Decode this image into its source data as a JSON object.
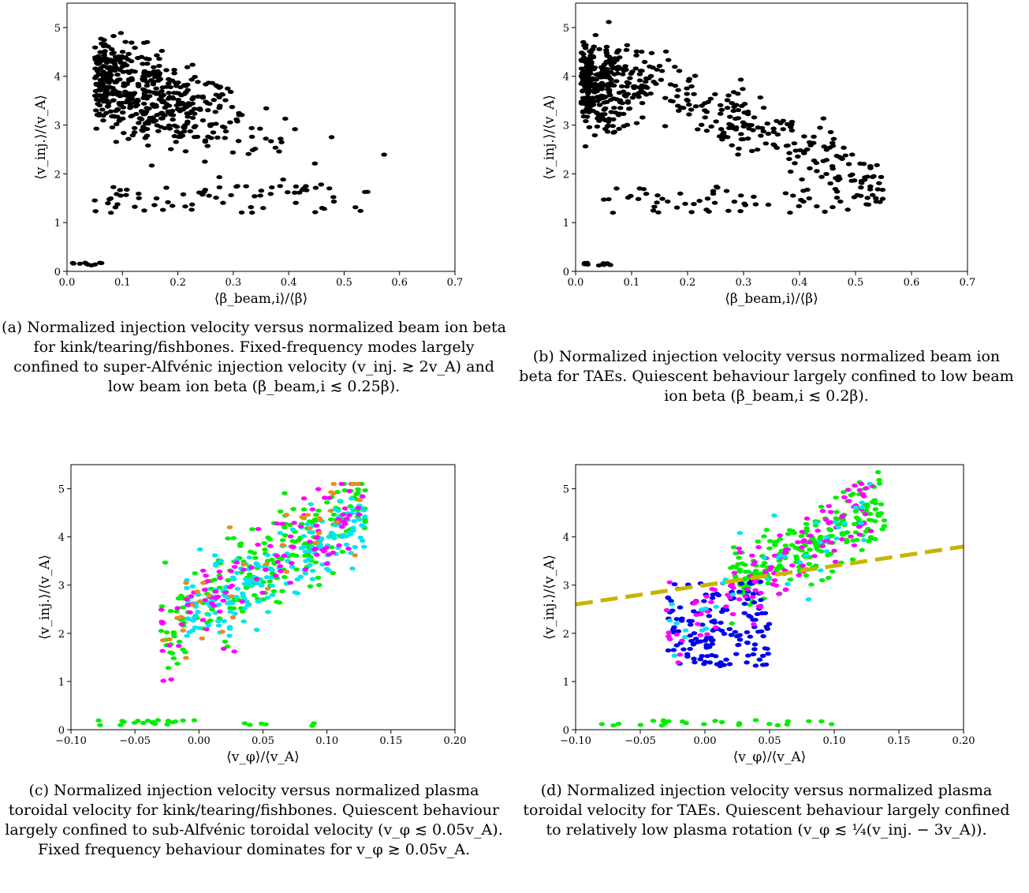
{
  "colors": {
    "green": "#00ee00",
    "cyan": "#00e5ee",
    "magenta": "#ff00ff",
    "orange": "#ee8a1c",
    "blue": "#0000ee",
    "fit_line": "#c8b400"
  },
  "chart_data": [
    {
      "type": "scatter",
      "xlabel": "⟨β_beam,i⟩/⟨β⟩",
      "ylabel": "⟨v_inj.⟩/⟨v_A⟩",
      "xlim": [
        0,
        0.7
      ],
      "ylim": [
        0,
        5.5
      ],
      "xticks": [
        "0.0",
        "0.1",
        "0.2",
        "0.3",
        "0.4",
        "0.5",
        "0.6",
        "0.7"
      ],
      "yticks": [
        "0",
        "1",
        "2",
        "3",
        "4",
        "5"
      ],
      "series_colors": [
        "green",
        "cyan",
        "magenta",
        "orange"
      ],
      "caption": "(a) Normalized injection velocity versus normalized beam ion beta for kink/tearing/fishbones. Fixed-frequency modes largely confined to super-Alfvénic injection velocity (v_inj. ≳ 2v_A) and low beam ion beta (β_beam,i ≲ 0.25β)."
    },
    {
      "type": "scatter",
      "xlabel": "⟨β_beam,i⟩/⟨β⟩",
      "ylabel": "⟨v_inj.⟩/⟨v_A⟩",
      "xlim": [
        0,
        0.7
      ],
      "ylim": [
        0,
        5.5
      ],
      "xticks": [
        "0.0",
        "0.1",
        "0.2",
        "0.3",
        "0.4",
        "0.5",
        "0.6",
        "0.7"
      ],
      "yticks": [
        "0",
        "1",
        "2",
        "3",
        "4",
        "5"
      ],
      "series_colors": [
        "green",
        "cyan",
        "magenta",
        "blue"
      ],
      "caption": "(b) Normalized injection velocity versus normalized beam ion beta for TAEs. Quiescent behaviour largely confined to low beam ion beta (β_beam,i ≲ 0.2β)."
    },
    {
      "type": "scatter",
      "xlabel": "⟨v_φ⟩/⟨v_A⟩",
      "ylabel": "⟨v_inj.⟩/⟨v_A⟩",
      "xlim": [
        -0.1,
        0.2
      ],
      "ylim": [
        0,
        5.5
      ],
      "xticks": [
        "−0.10",
        "−0.05",
        "0.00",
        "0.05",
        "0.10",
        "0.15",
        "0.20"
      ],
      "yticks": [
        "0",
        "1",
        "2",
        "3",
        "4",
        "5"
      ],
      "series_colors": [
        "green",
        "cyan",
        "magenta",
        "orange"
      ],
      "caption": "(c) Normalized injection velocity versus normalized plasma toroidal velocity for kink/tearing/fishbones. Quiescent behaviour largely confined to sub-Alfvénic toroidal velocity (v_φ ≲ 0.05v_A). Fixed frequency behaviour dominates for v_φ ≳ 0.05v_A."
    },
    {
      "type": "scatter",
      "xlabel": "⟨v_φ⟩/⟨v_A⟩",
      "ylabel": "⟨v_inj.⟩/⟨v_A⟩",
      "xlim": [
        -0.1,
        0.2
      ],
      "ylim": [
        0,
        5.5
      ],
      "xticks": [
        "−0.10",
        "−0.05",
        "0.00",
        "0.05",
        "0.10",
        "0.15",
        "0.20"
      ],
      "yticks": [
        "0",
        "1",
        "2",
        "3",
        "4",
        "5"
      ],
      "series_colors": [
        "green",
        "cyan",
        "magenta",
        "blue"
      ],
      "fit_line": {
        "x": [
          -0.1,
          0.2
        ],
        "y": [
          2.6,
          3.8
        ],
        "style": "dashed"
      },
      "caption": "(d) Normalized injection velocity versus normalized plasma toroidal velocity for TAEs. Quiescent behaviour largely confined to relatively low plasma rotation (v_φ ≲ ¼(v_inj. − 3v_A))."
    }
  ]
}
